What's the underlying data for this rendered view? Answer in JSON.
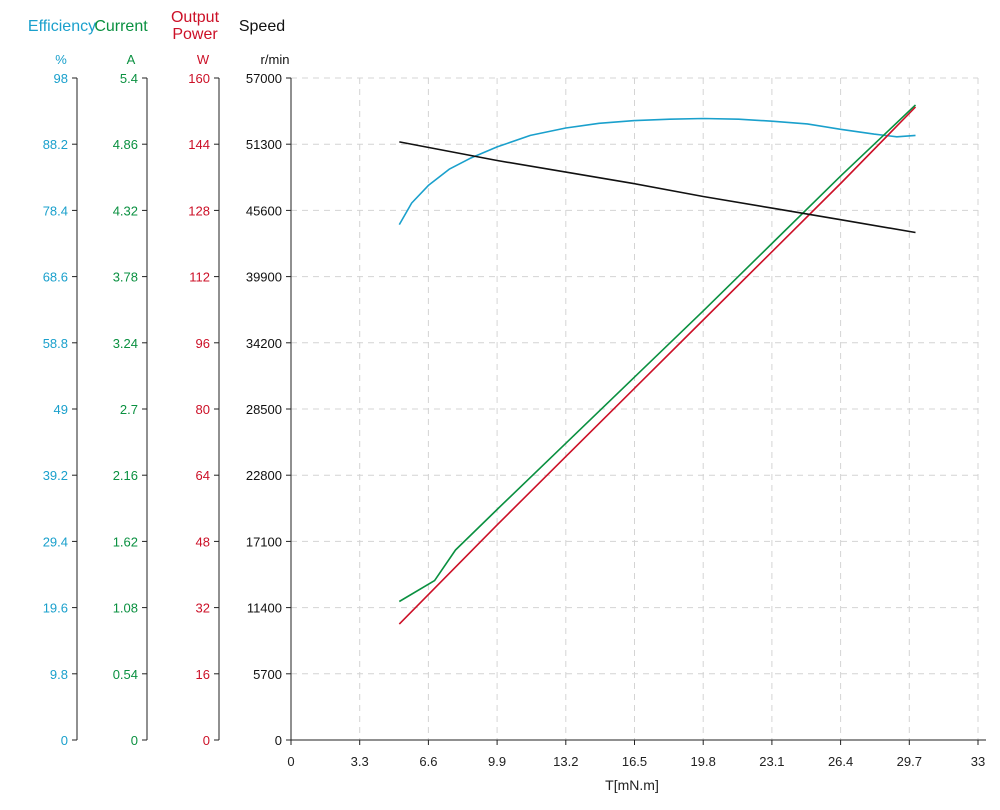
{
  "colors": {
    "efficiency": "#1aa0cc",
    "current": "#0a9040",
    "output_power": "#cc1027",
    "speed": "#111111",
    "grid": "#d4d4d4"
  },
  "chart_data": {
    "type": "line",
    "xlabel": "T[mN.m]",
    "xlim": [
      0,
      33
    ],
    "x_ticks": [
      "0",
      "3.3",
      "6.6",
      "9.9",
      "13.2",
      "16.5",
      "19.8",
      "23.1",
      "26.4",
      "29.7",
      "33"
    ],
    "grid": "dashed",
    "axes": [
      {
        "key": "efficiency",
        "header": "Efficiency",
        "unit": "%",
        "ylim": [
          0,
          98
        ],
        "ticks": [
          "0",
          "9.8",
          "19.6",
          "29.4",
          "39.2",
          "49",
          "58.8",
          "68.6",
          "78.4",
          "88.2",
          "98"
        ]
      },
      {
        "key": "current",
        "header": "Current",
        "unit": "A",
        "ylim": [
          0,
          5.4
        ],
        "ticks": [
          "0",
          "0.54",
          "1.08",
          "1.62",
          "2.16",
          "2.7",
          "3.24",
          "3.78",
          "4.32",
          "4.86",
          "5.4"
        ]
      },
      {
        "key": "output_power",
        "header": "Output Power",
        "header_lines": [
          "Output",
          "Power"
        ],
        "unit": "W",
        "ylim": [
          0,
          160
        ],
        "ticks": [
          "0",
          "16",
          "32",
          "48",
          "64",
          "80",
          "96",
          "112",
          "128",
          "144",
          "160"
        ]
      },
      {
        "key": "speed",
        "header": "Speed",
        "unit": "r/min",
        "ylim": [
          0,
          57000
        ],
        "ticks": [
          "0",
          "5700",
          "11400",
          "17100",
          "22800",
          "28500",
          "34200",
          "39900",
          "45600",
          "51300",
          "57000"
        ]
      }
    ],
    "series": [
      {
        "axis": "efficiency",
        "x": [
          5.2,
          5.8,
          6.6,
          7.6,
          8.6,
          9.9,
          11.5,
          13.2,
          14.8,
          16.5,
          18.2,
          19.8,
          21.5,
          23.1,
          24.8,
          26.4,
          28.0,
          29.1,
          30.0
        ],
        "y": [
          76.3,
          79.5,
          82.1,
          84.5,
          86.1,
          87.8,
          89.5,
          90.6,
          91.3,
          91.7,
          91.9,
          92.0,
          91.9,
          91.6,
          91.2,
          90.4,
          89.7,
          89.3,
          89.5
        ]
      },
      {
        "axis": "current",
        "x": [
          5.2,
          6.9,
          7.9,
          9.9,
          13.2,
          16.5,
          19.8,
          23.1,
          26.4,
          30.0
        ],
        "y": [
          1.13,
          1.3,
          1.55,
          1.88,
          2.42,
          2.96,
          3.5,
          4.05,
          4.6,
          5.18
        ]
      },
      {
        "axis": "output_power",
        "x": [
          5.2,
          9.9,
          13.2,
          16.5,
          19.8,
          23.1,
          26.4,
          30.0
        ],
        "y": [
          28,
          52,
          68.5,
          85,
          101.5,
          118,
          134.5,
          153
        ]
      },
      {
        "axis": "speed",
        "x": [
          5.2,
          9.9,
          13.2,
          16.5,
          19.8,
          23.1,
          26.4,
          30.0
        ],
        "y": [
          51500,
          49900,
          48900,
          47900,
          46800,
          45800,
          44800,
          43700
        ]
      }
    ]
  }
}
